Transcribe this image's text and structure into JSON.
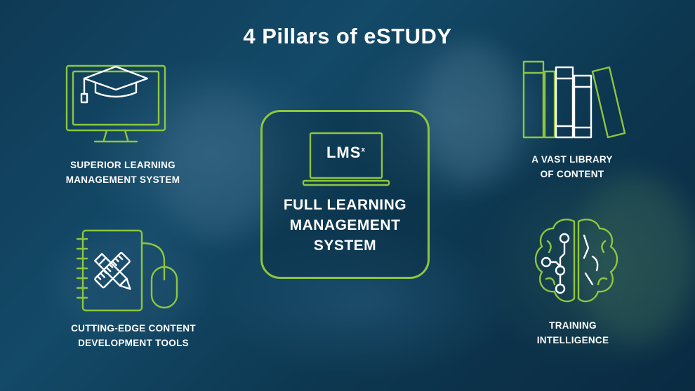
{
  "slide": {
    "title": "4 Pillars of eSTUDY",
    "accent_color": "#8dc63f",
    "background_color": "#0f3a55"
  },
  "center": {
    "screen_text": "LMS",
    "screen_superscript": "x",
    "lines": [
      "FULL LEARNING",
      "MANAGEMENT",
      "SYSTEM"
    ],
    "icon": "laptop-icon"
  },
  "pillars": [
    {
      "lines": [
        "SUPERIOR LEARNING",
        "MANAGEMENT SYSTEM"
      ],
      "icon": "graduation-monitor-icon"
    },
    {
      "lines": [
        "A VAST LIBRARY",
        "OF CONTENT"
      ],
      "icon": "books-icon"
    },
    {
      "lines": [
        "CUTTING-EDGE CONTENT",
        "DEVELOPMENT TOOLS"
      ],
      "icon": "notebook-mouse-icon"
    },
    {
      "lines": [
        "TRAINING",
        "INTELLIGENCE"
      ],
      "icon": "brain-circuit-icon"
    }
  ]
}
